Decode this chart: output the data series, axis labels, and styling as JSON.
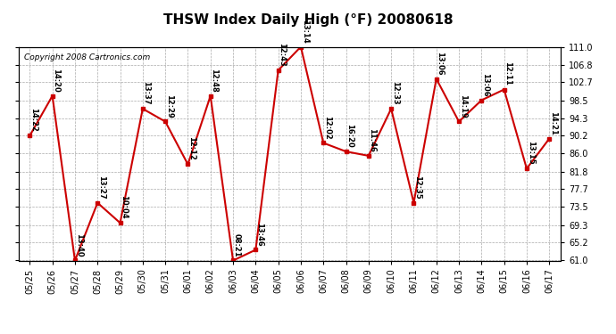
{
  "title": "THSW Index Daily High (°F) 20080618",
  "copyright": "Copyright 2008 Cartronics.com",
  "x_labels": [
    "05/25",
    "05/26",
    "05/27",
    "05/28",
    "05/29",
    "05/30",
    "05/31",
    "06/01",
    "06/02",
    "06/03",
    "06/04",
    "06/05",
    "06/06",
    "06/07",
    "06/08",
    "06/09",
    "06/10",
    "06/11",
    "06/12",
    "06/13",
    "06/14",
    "06/15",
    "06/16",
    "06/17"
  ],
  "y_values": [
    90.2,
    99.5,
    61.0,
    74.5,
    69.8,
    96.5,
    93.5,
    83.5,
    99.5,
    61.0,
    63.5,
    105.5,
    111.0,
    88.5,
    86.5,
    85.5,
    96.5,
    74.5,
    103.5,
    93.5,
    98.5,
    101.0,
    82.5,
    89.5
  ],
  "time_labels": [
    "14:22",
    "14:20",
    "13:40",
    "13:27",
    "10:04",
    "13:37",
    "12:29",
    "12:12",
    "12:48",
    "08:21",
    "13:46",
    "12:43",
    "13:14",
    "12:02",
    "16:20",
    "11:46",
    "12:33",
    "12:35",
    "13:06",
    "14:19",
    "13:06",
    "12:11",
    "13:15",
    "14:21"
  ],
  "ylim_min": 61.0,
  "ylim_max": 111.0,
  "yticks": [
    61.0,
    65.2,
    69.3,
    73.5,
    77.7,
    81.8,
    86.0,
    90.2,
    94.3,
    98.5,
    102.7,
    106.8,
    111.0
  ],
  "ytick_labels": [
    "61.0",
    "65.2",
    "69.3",
    "73.5",
    "77.7",
    "81.8",
    "86.0",
    "90.2",
    "94.3",
    "98.5",
    "102.7",
    "106.8",
    "111.0"
  ],
  "line_color": "#cc0000",
  "marker_color": "#cc0000",
  "bg_color": "#ffffff",
  "grid_color": "#aaaaaa",
  "title_fontsize": 11,
  "label_fontsize": 6,
  "copyright_fontsize": 6.5,
  "tick_fontsize": 7
}
